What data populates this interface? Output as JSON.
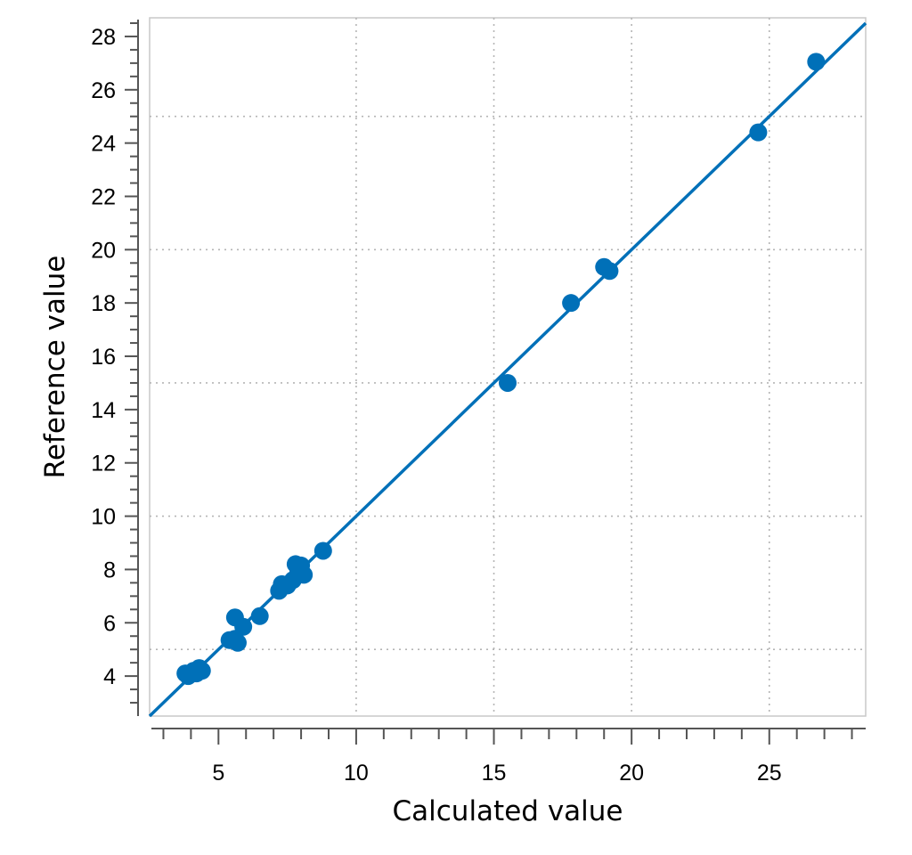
{
  "chart_data": {
    "type": "scatter",
    "title": "",
    "xlabel": "Calculated value",
    "ylabel": "Reference value",
    "xlim": [
      2.5,
      28.5
    ],
    "ylim": [
      2.5,
      28.7
    ],
    "x_ticks": [
      5,
      10,
      15,
      20,
      25
    ],
    "y_ticks": [
      4,
      6,
      8,
      10,
      12,
      14,
      16,
      18,
      20,
      22,
      24,
      26,
      28
    ],
    "x_grid": [
      10,
      15,
      20,
      25
    ],
    "y_grid": [
      5,
      10,
      15,
      20,
      25
    ],
    "grid": true,
    "legend": "none",
    "color": "#0070b8",
    "fit_line": {
      "x": [
        2.5,
        28.5
      ],
      "y": [
        2.5,
        28.5
      ]
    },
    "points": [
      {
        "x": 3.8,
        "y": 4.1
      },
      {
        "x": 3.9,
        "y": 4.0
      },
      {
        "x": 4.1,
        "y": 4.2
      },
      {
        "x": 4.2,
        "y": 4.1
      },
      {
        "x": 4.3,
        "y": 4.3
      },
      {
        "x": 4.4,
        "y": 4.2
      },
      {
        "x": 5.4,
        "y": 5.35
      },
      {
        "x": 5.6,
        "y": 5.4
      },
      {
        "x": 5.7,
        "y": 5.25
      },
      {
        "x": 5.6,
        "y": 6.2
      },
      {
        "x": 5.9,
        "y": 5.85
      },
      {
        "x": 6.5,
        "y": 6.25
      },
      {
        "x": 7.2,
        "y": 7.2
      },
      {
        "x": 7.3,
        "y": 7.45
      },
      {
        "x": 7.5,
        "y": 7.4
      },
      {
        "x": 7.7,
        "y": 7.6
      },
      {
        "x": 7.8,
        "y": 8.2
      },
      {
        "x": 7.9,
        "y": 7.9
      },
      {
        "x": 8.0,
        "y": 8.15
      },
      {
        "x": 8.1,
        "y": 7.8
      },
      {
        "x": 8.8,
        "y": 8.7
      },
      {
        "x": 15.5,
        "y": 15.0
      },
      {
        "x": 17.8,
        "y": 18.0
      },
      {
        "x": 19.0,
        "y": 19.35
      },
      {
        "x": 19.2,
        "y": 19.2
      },
      {
        "x": 24.6,
        "y": 24.4
      },
      {
        "x": 26.7,
        "y": 27.05
      }
    ]
  }
}
